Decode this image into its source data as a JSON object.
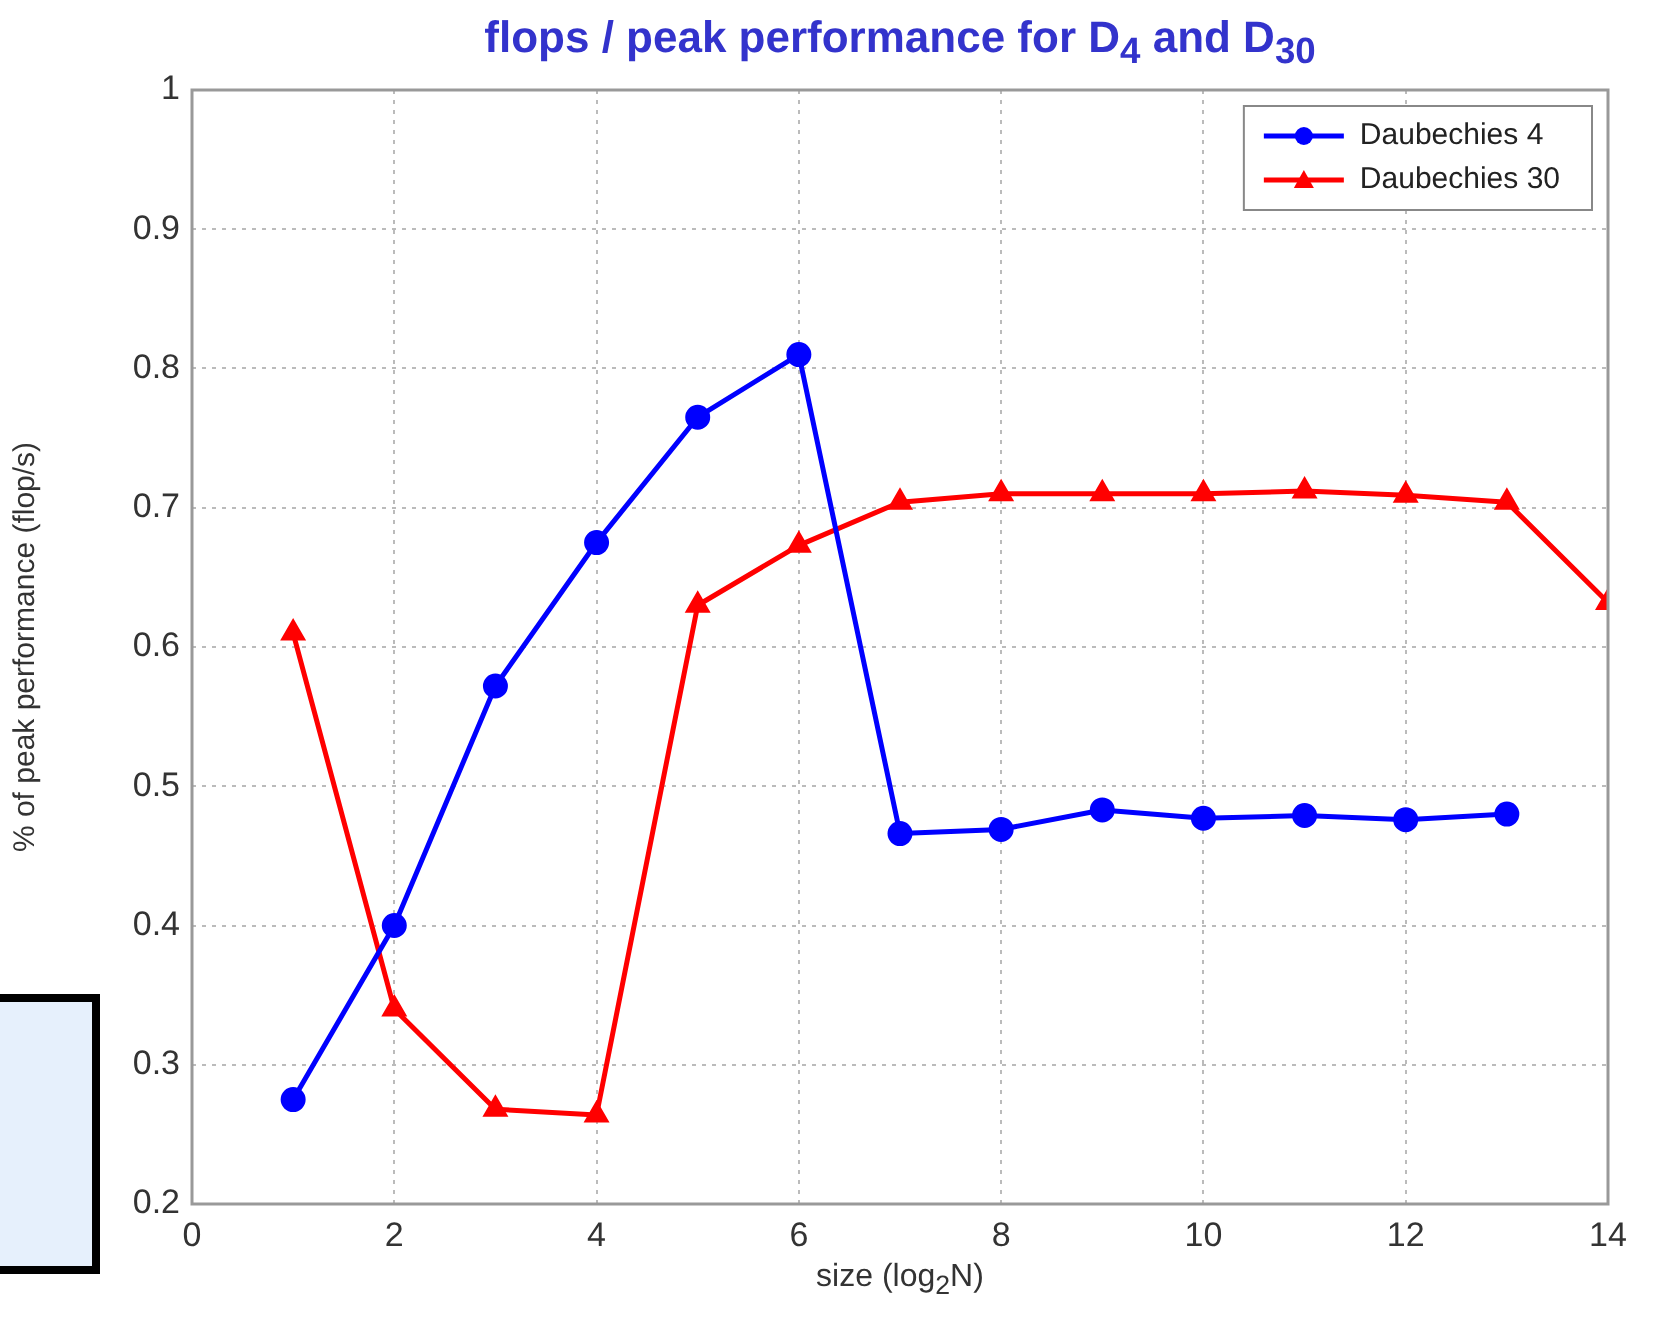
{
  "chart_data": {
    "type": "line",
    "title": "flops / peak performance for D$_{4}$  and D$_{30}$",
    "xlabel": "size (log$_{2}$N)",
    "ylabel": "% of peak performance (flop/s)",
    "x": [
      1,
      2,
      3,
      4,
      5,
      6,
      7,
      8,
      9,
      10,
      11,
      12,
      13,
      14
    ],
    "series": [
      {
        "name": "Daubechies 4",
        "color": "#0000ff",
        "marker": "circle",
        "values": [
          0.275,
          0.4,
          0.572,
          0.675,
          0.765,
          0.81,
          0.466,
          0.469,
          0.483,
          0.477,
          0.479,
          0.476,
          0.48,
          null
        ]
      },
      {
        "name": "Daubechies 30",
        "color": "#ff0000",
        "marker": "triangle",
        "values": [
          0.61,
          0.34,
          0.268,
          0.264,
          0.63,
          0.673,
          0.704,
          0.71,
          0.71,
          0.71,
          0.712,
          0.709,
          0.704,
          0.632
        ]
      }
    ],
    "xlim": [
      0,
      14
    ],
    "xticks": [
      0,
      2,
      4,
      6,
      8,
      10,
      12,
      14
    ],
    "ylim": [
      0.2,
      1
    ],
    "yticks": [
      0.2,
      0.3,
      0.4,
      0.5,
      0.6,
      0.7,
      0.8,
      0.9,
      1
    ],
    "grid": true,
    "legend": "top right",
    "line_style": "solid"
  }
}
